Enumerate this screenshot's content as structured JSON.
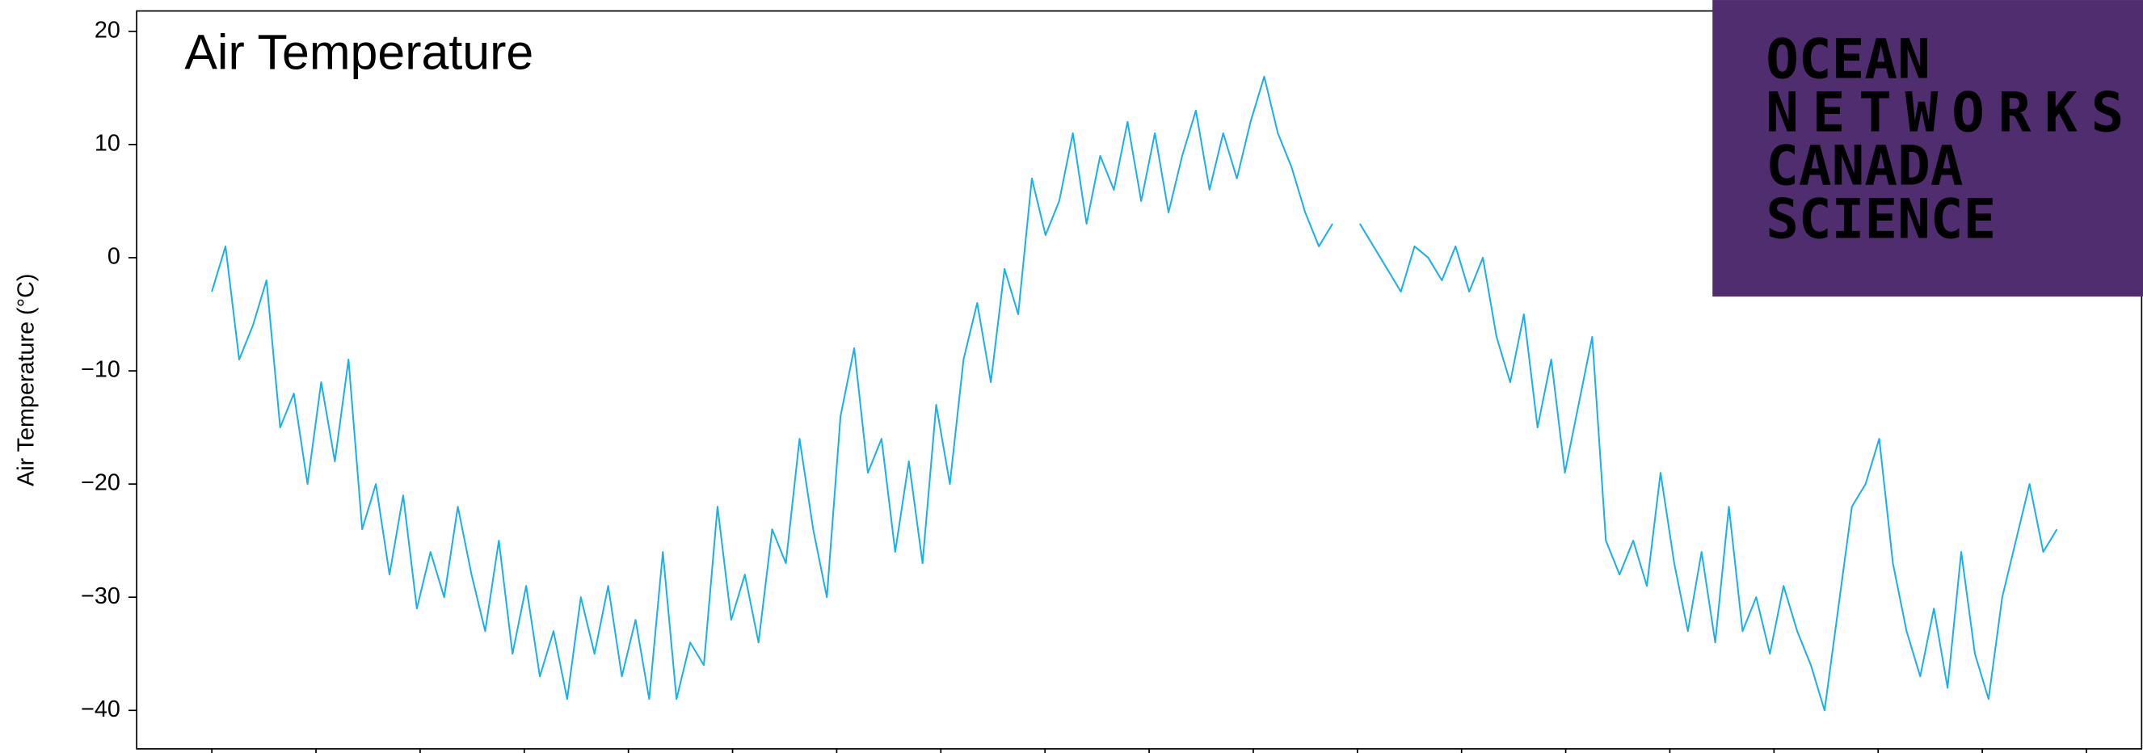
{
  "chart_data": {
    "type": "line",
    "title": "Air Temperature",
    "y_label": "Air Temperature (°C)",
    "series": [
      {
        "name": null,
        "color": "#1ab0e8",
        "values": [
          -3,
          1,
          -9,
          -6,
          -2,
          -15,
          -12,
          -20,
          -11,
          -18,
          -9,
          -24,
          -20,
          -28,
          -21,
          -31,
          -26,
          -30,
          -22,
          -28,
          -33,
          -25,
          -35,
          -29,
          -37,
          -33,
          -39,
          -30,
          -35,
          -29,
          -37,
          -32,
          -39,
          -26,
          -39,
          -34,
          -36,
          -22,
          -32,
          -28,
          -34,
          -24,
          -27,
          -16,
          -24,
          -30,
          -14,
          -8,
          -19,
          -16,
          -26,
          -18,
          -27,
          -13,
          -20,
          -9,
          -4,
          -11,
          -1,
          -5,
          7,
          2,
          5,
          11,
          3,
          9,
          6,
          12,
          5,
          11,
          4,
          9,
          13,
          6,
          11,
          7,
          12,
          16,
          11,
          8,
          4,
          1,
          3,
          null,
          3,
          1,
          -1,
          -3,
          1,
          0,
          -2,
          1,
          -3,
          0,
          -7,
          -11,
          -5,
          -15,
          -9,
          -19,
          -13,
          -7,
          -25,
          -28,
          -25,
          -29,
          -19,
          -27,
          -33,
          -26,
          -34,
          -22,
          -33,
          -30,
          -35,
          -29,
          -33,
          -36,
          -40,
          -31,
          -22,
          -20,
          -16,
          -27,
          -33,
          -37,
          -31,
          -38,
          -26,
          -35,
          -39,
          -30,
          -25,
          -20,
          -26,
          -24
        ]
      }
    ],
    "ylim": [
      -43.4,
      21.8
    ],
    "yticks": [
      {
        "value": -40,
        "label": "−40"
      },
      {
        "value": -30,
        "label": "−30"
      },
      {
        "value": -20,
        "label": "−20"
      },
      {
        "value": -10,
        "label": "−10"
      },
      0,
      10,
      20
    ]
  },
  "logo": {
    "lines": [
      "OCEAN",
      "NETWORKS",
      "CANADA",
      "SCIENCE"
    ],
    "background": "#4f2d6e",
    "colors": [
      "#b9a7cc",
      "#b9a7cc",
      "#b9a7cc",
      "#ffffff"
    ]
  }
}
